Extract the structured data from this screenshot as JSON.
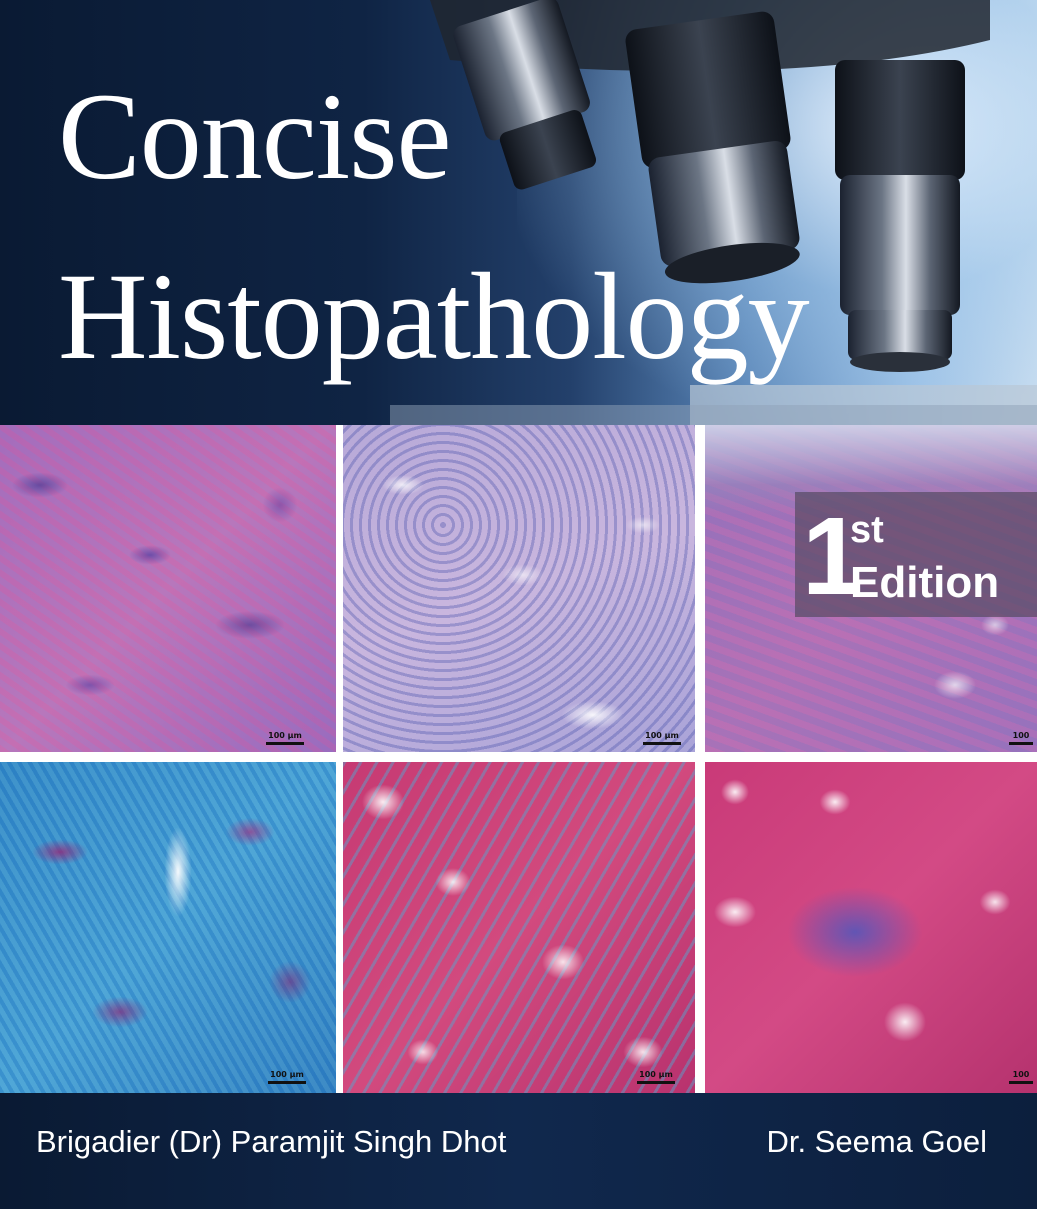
{
  "book": {
    "title_line1": "Concise",
    "title_line2": "Histopathology",
    "edition_number": "1",
    "edition_suffix": "st",
    "edition_word": "Edition",
    "authors": [
      "Brigadier (Dr) Paramjit Singh Dhot",
      "Dr. Seema Goel"
    ]
  },
  "micrographs": {
    "scale_labels": [
      "100 µm",
      "100 µm",
      "100",
      "100 µm",
      "100 µm",
      "100"
    ]
  },
  "colors": {
    "navy": "#0b1a33",
    "he_stain_pink": "#c27ab8",
    "trichrome_blue": "#3a8ccc",
    "trichrome_magenta": "#c93a78"
  }
}
